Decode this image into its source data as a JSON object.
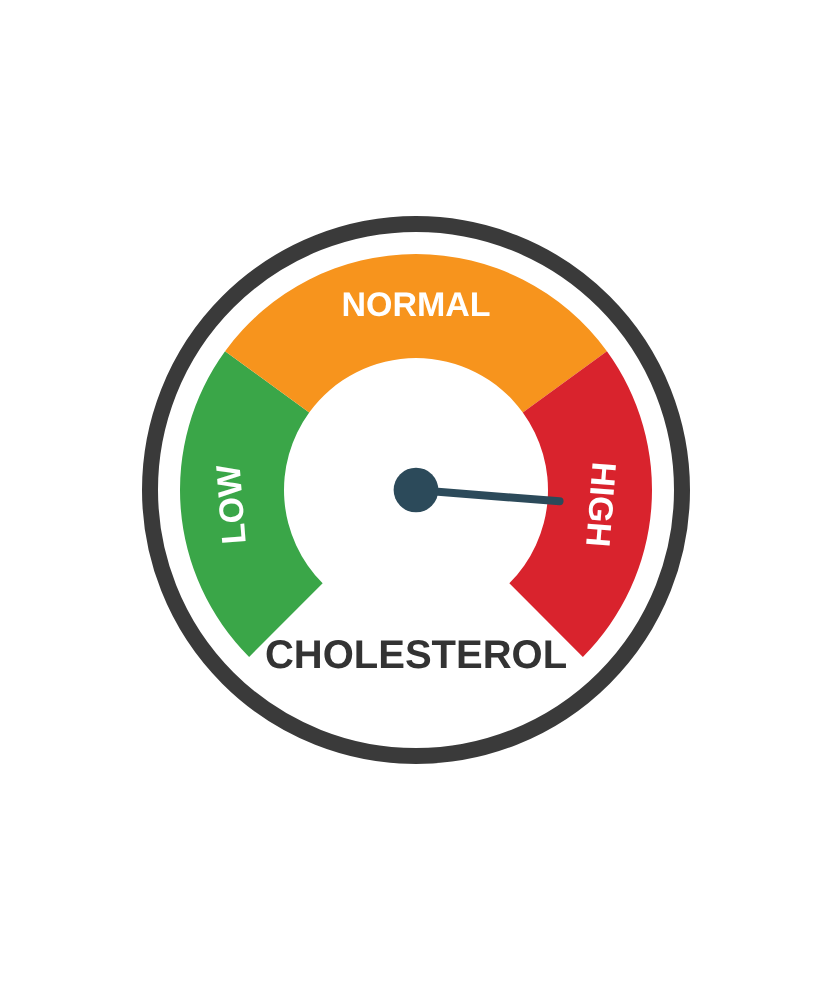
{
  "chart_data": {
    "type": "donut",
    "title": "CHOLESTEROL",
    "categories": [
      "LOW",
      "NORMAL",
      "HIGH"
    ],
    "values": [
      30,
      40,
      30
    ],
    "colors": [
      "#3aa648",
      "#f7941d",
      "#d9232d"
    ],
    "needle": "HIGH"
  }
}
